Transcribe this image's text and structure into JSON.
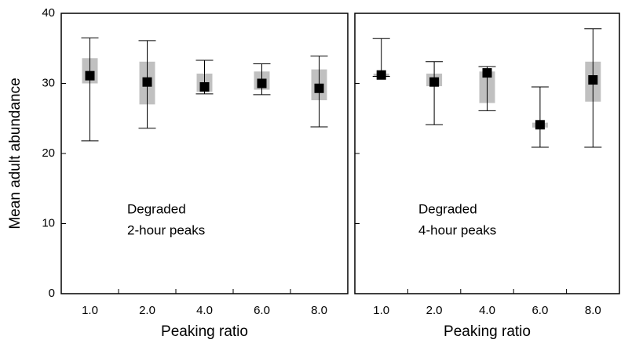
{
  "chart_data": [
    {
      "type": "box",
      "y_label": "Mean adult abundance",
      "x_label": "Peaking ratio",
      "annotation": [
        "Degraded",
        "2-hour peaks"
      ],
      "categories": [
        "1.0",
        "2.0",
        "4.0",
        "6.0",
        "8.0"
      ],
      "whisker_high": [
        36.5,
        36.1,
        33.3,
        32.8,
        33.9
      ],
      "whisker_low": [
        21.8,
        23.6,
        28.5,
        28.4,
        23.8
      ],
      "box_high": [
        33.6,
        33.1,
        31.4,
        31.7,
        32.0
      ],
      "box_low": [
        30.0,
        27.0,
        28.8,
        29.1,
        27.6
      ],
      "mean": [
        31.1,
        30.2,
        29.5,
        30.0,
        29.3
      ],
      "box_color": "#c0c0c0",
      "mean_color": "#000000",
      "ylim": [
        0,
        40
      ],
      "yticks": [
        0,
        10,
        20,
        30,
        40
      ],
      "show_ytick_labels": true
    },
    {
      "type": "box",
      "x_label": "Peaking ratio",
      "annotation": [
        "Degraded",
        "4-hour peaks"
      ],
      "categories": [
        "1.0",
        "2.0",
        "4.0",
        "6.0",
        "8.0"
      ],
      "whisker_high": [
        36.4,
        33.1,
        32.4,
        29.5,
        37.8
      ],
      "whisker_low": [
        31.0,
        24.1,
        26.1,
        20.9,
        20.9
      ],
      "box_high": [
        31.4,
        31.4,
        31.7,
        24.4,
        33.1
      ],
      "box_low": [
        30.9,
        29.6,
        27.2,
        23.7,
        27.4
      ],
      "mean": [
        31.2,
        30.2,
        31.5,
        24.1,
        30.5
      ],
      "box_color": "#c0c0c0",
      "mean_color": "#000000",
      "ylim": [
        0,
        40
      ],
      "yticks": [
        0,
        10,
        20,
        30,
        40
      ],
      "show_ytick_labels": false
    }
  ]
}
